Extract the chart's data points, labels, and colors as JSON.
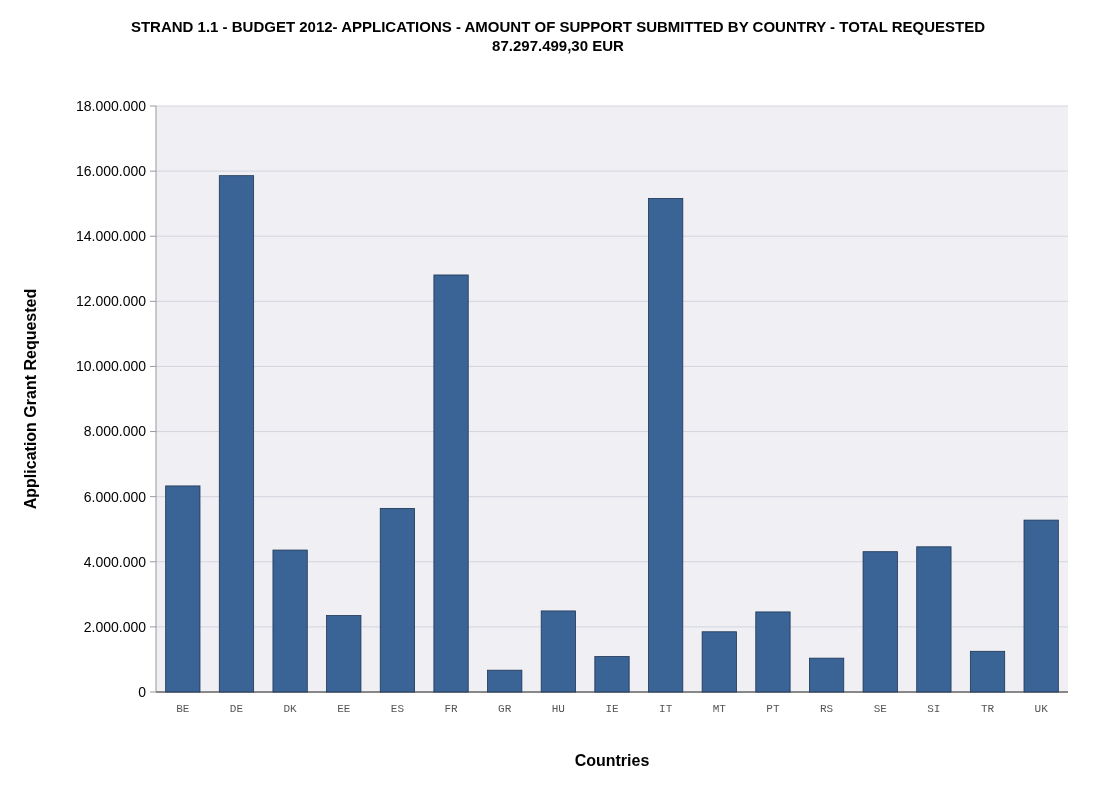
{
  "chart_data": {
    "type": "bar",
    "title": "STRAND 1.1 - BUDGET 2012- APPLICATIONS - AMOUNT OF SUPPORT SUBMITTED BY COUNTRY - TOTAL REQUESTED",
    "subtitle": "87.297.499,30 EUR",
    "xlabel": "Countries",
    "ylabel": "Application Grant Requested",
    "categories": [
      "BE",
      "DE",
      "DK",
      "EE",
      "ES",
      "FR",
      "GR",
      "HU",
      "IE",
      "IT",
      "MT",
      "PT",
      "RS",
      "SE",
      "SI",
      "TR",
      "UK"
    ],
    "values": [
      6330000,
      15860000,
      4360000,
      2350000,
      5640000,
      12810000,
      670000,
      2490000,
      1090000,
      15160000,
      1850000,
      2460000,
      1040000,
      4310000,
      4460000,
      1250000,
      5280000
    ],
    "color": "#3a6496",
    "ylim": [
      0,
      18000000
    ],
    "yticks": [
      {
        "value": 0,
        "label": "0"
      },
      {
        "value": 2000000,
        "label": "2.000.000"
      },
      {
        "value": 4000000,
        "label": "4.000.000"
      },
      {
        "value": 6000000,
        "label": "6.000.000"
      },
      {
        "value": 8000000,
        "label": "8.000.000"
      },
      {
        "value": 10000000,
        "label": "10.000.000"
      },
      {
        "value": 12000000,
        "label": "12.000.000"
      },
      {
        "value": 14000000,
        "label": "14.000.000"
      },
      {
        "value": 16000000,
        "label": "16.000.000"
      },
      {
        "value": 18000000,
        "label": "18.000.000"
      }
    ],
    "grid": "y"
  }
}
